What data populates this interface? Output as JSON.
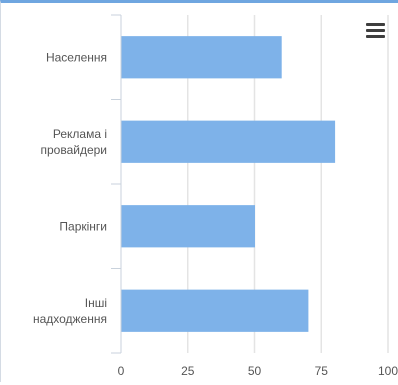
{
  "chart_data": {
    "type": "bar",
    "orientation": "horizontal",
    "categories": [
      [
        "Населення"
      ],
      [
        "Реклама і",
        "провайдери"
      ],
      [
        "Паркінги"
      ],
      [
        "Інші",
        "надходження"
      ]
    ],
    "values": [
      60,
      80,
      50,
      70
    ],
    "xlim": [
      0,
      100
    ],
    "xticks": [
      0,
      25,
      50,
      75,
      100
    ],
    "grid": true,
    "colors": {
      "bar": "#7eb2e9",
      "accent": "#6fa6e0"
    }
  },
  "menu": {
    "icon": "hamburger-menu-icon"
  }
}
